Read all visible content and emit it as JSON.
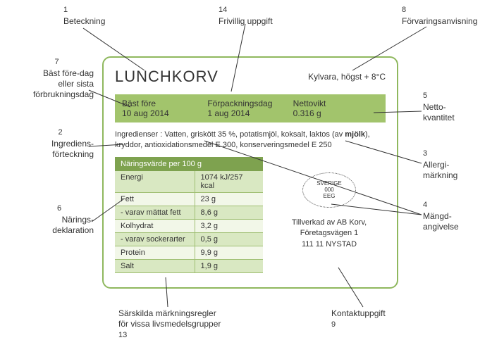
{
  "product": {
    "title": "LUNCHKORV",
    "storage": "Kylvara, högst + 8°C"
  },
  "bar": {
    "best_before_label": "Bäst före",
    "best_before_value": "10 aug 2014",
    "pack_date_label": "Förpackningsdag",
    "pack_date_value": "1 aug 2014",
    "net_weight_label": "Nettovikt",
    "net_weight_value": "0.316 g"
  },
  "ingredients_prefix": "Ingredienser : Vatten, griskött 35 %, potatismjöl, koksalt, laktos (av ",
  "ingredients_allergen": "mjölk",
  "ingredients_suffix": "), kryddor, antioxidationsmedel E 300, konserveringsmedel E 250",
  "nutrition": {
    "header": "Näringsvärde per 100 g",
    "rows": [
      {
        "label": "Energi",
        "value": "1074 kJ/257 kcal"
      },
      {
        "label": "Fett",
        "value": "23 g"
      },
      {
        "label": "- varav mättat fett",
        "value": "8,6 g"
      },
      {
        "label": "Kolhydrat",
        "value": "3,2 g"
      },
      {
        "label": "- varav sockerarter",
        "value": "0,5 g"
      },
      {
        "label": "Protein",
        "value": "9,9 g"
      },
      {
        "label": "Salt",
        "value": "1,9 g"
      }
    ]
  },
  "oval": {
    "l1": "SVERIGE",
    "l2": "000",
    "l3": "EEG"
  },
  "contact": {
    "line1": "Tillverkad av AB Korv,",
    "line2": "Företagsvägen 1",
    "line3": "111 11 NYSTAD"
  },
  "callouts": {
    "c1": {
      "num": "1",
      "text": "Beteckning"
    },
    "c2": {
      "num": "2",
      "text": "Ingrediens-\nförteckning"
    },
    "c3": {
      "num": "3",
      "text": "Allergi-\nmärkning"
    },
    "c4": {
      "num": "4",
      "text": "Mängd-\nangivelse"
    },
    "c5": {
      "num": "5",
      "text": "Netto-\nkvantitet"
    },
    "c6": {
      "num": "6",
      "text": "Närings-\ndeklaration"
    },
    "c7": {
      "num": "7",
      "text": "Bäst före-dag\neller sista\nförbrukningsdag"
    },
    "c8": {
      "num": "8",
      "text": "Förvaringsanvisning"
    },
    "c9": {
      "num": "9",
      "text": "Kontaktuppgift"
    },
    "c13": {
      "num": "13",
      "text": "Särskilda märkningsregler\nför vissa livsmedelsgrupper"
    },
    "c14": {
      "num": "14",
      "text": "Frivillig uppgift"
    }
  }
}
